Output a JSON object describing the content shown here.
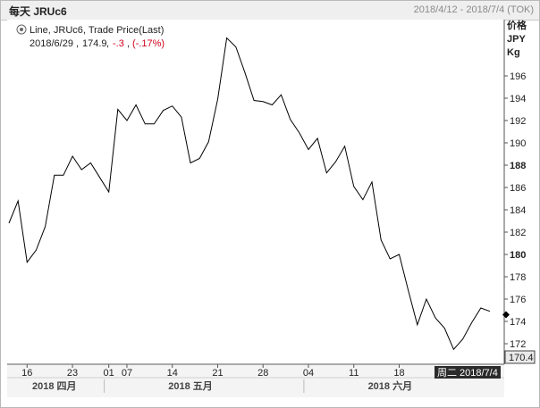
{
  "header": {
    "title": "每天 JRUc6",
    "range": "2018/4/12 - 2018/7/4 (TOK)"
  },
  "legend": {
    "line1": "Line, JRUc6, Trade Price(Last)",
    "date": "2018/6/29",
    "value": "174.9",
    "change": "-.3",
    "change_pct": "(-.17%)",
    "icon": "settings-gear-icon"
  },
  "axis": {
    "unit_label_1": "价格",
    "unit_label_2": "JPY",
    "unit_label_3": "Kg",
    "current_value": "170.4",
    "cursor_date_prefix": "周二",
    "cursor_date": "2018/7/4"
  },
  "colors": {
    "line": "#000000",
    "negative": "#d0021b",
    "grid": "#d9d9d9"
  },
  "chart_data": {
    "type": "line",
    "title": "",
    "xlabel": "",
    "ylabel": "价格 JPY Kg",
    "ylim": [
      170.4,
      200
    ],
    "y_ticks": [
      172,
      174,
      176,
      178,
      180,
      182,
      184,
      186,
      188,
      190,
      192,
      194,
      196
    ],
    "y_tick_labels": [
      "172",
      "174",
      "176",
      "178",
      "180",
      "182",
      "184",
      "186",
      "188",
      "190",
      "192",
      "194",
      "196"
    ],
    "x_ticks": [
      {
        "label": "16",
        "index": 2
      },
      {
        "label": "23",
        "index": 7
      },
      {
        "label": "01",
        "index": 11
      },
      {
        "label": "07",
        "index": 13
      },
      {
        "label": "14",
        "index": 18
      },
      {
        "label": "21",
        "index": 23
      },
      {
        "label": "28",
        "index": 28
      },
      {
        "label": "04",
        "index": 33
      },
      {
        "label": "11",
        "index": 38
      },
      {
        "label": "18",
        "index": 43
      }
    ],
    "month_labels": [
      {
        "label": "2018 四月",
        "index": 5
      },
      {
        "label": "2018 五月",
        "index": 20
      },
      {
        "label": "2018 六月",
        "index": 42
      }
    ],
    "series": [
      {
        "values": [
          182.8,
          184.8,
          179.3,
          180.4,
          182.5,
          187.1,
          187.1,
          188.8,
          187.6,
          188.2,
          186.9,
          185.6,
          193.0,
          192.0,
          193.4,
          191.7,
          191.7,
          192.9,
          193.3,
          192.3,
          188.2,
          188.6,
          190.1,
          193.9,
          199.4,
          198.6,
          196.3,
          193.8,
          193.7,
          193.4,
          194.3,
          192.1,
          190.9,
          189.4,
          190.4,
          187.3,
          188.3,
          189.7,
          186.1,
          184.9,
          186.5,
          181.3,
          179.6,
          180.0,
          176.8,
          173.7,
          176.0,
          174.3,
          173.4,
          171.5,
          172.4,
          173.9,
          175.2,
          174.9
        ],
        "color": "#000000"
      }
    ],
    "markers": [
      {
        "y": 174.6,
        "shape": "diamond"
      }
    ],
    "grid": false,
    "legend_position": "top-left"
  }
}
